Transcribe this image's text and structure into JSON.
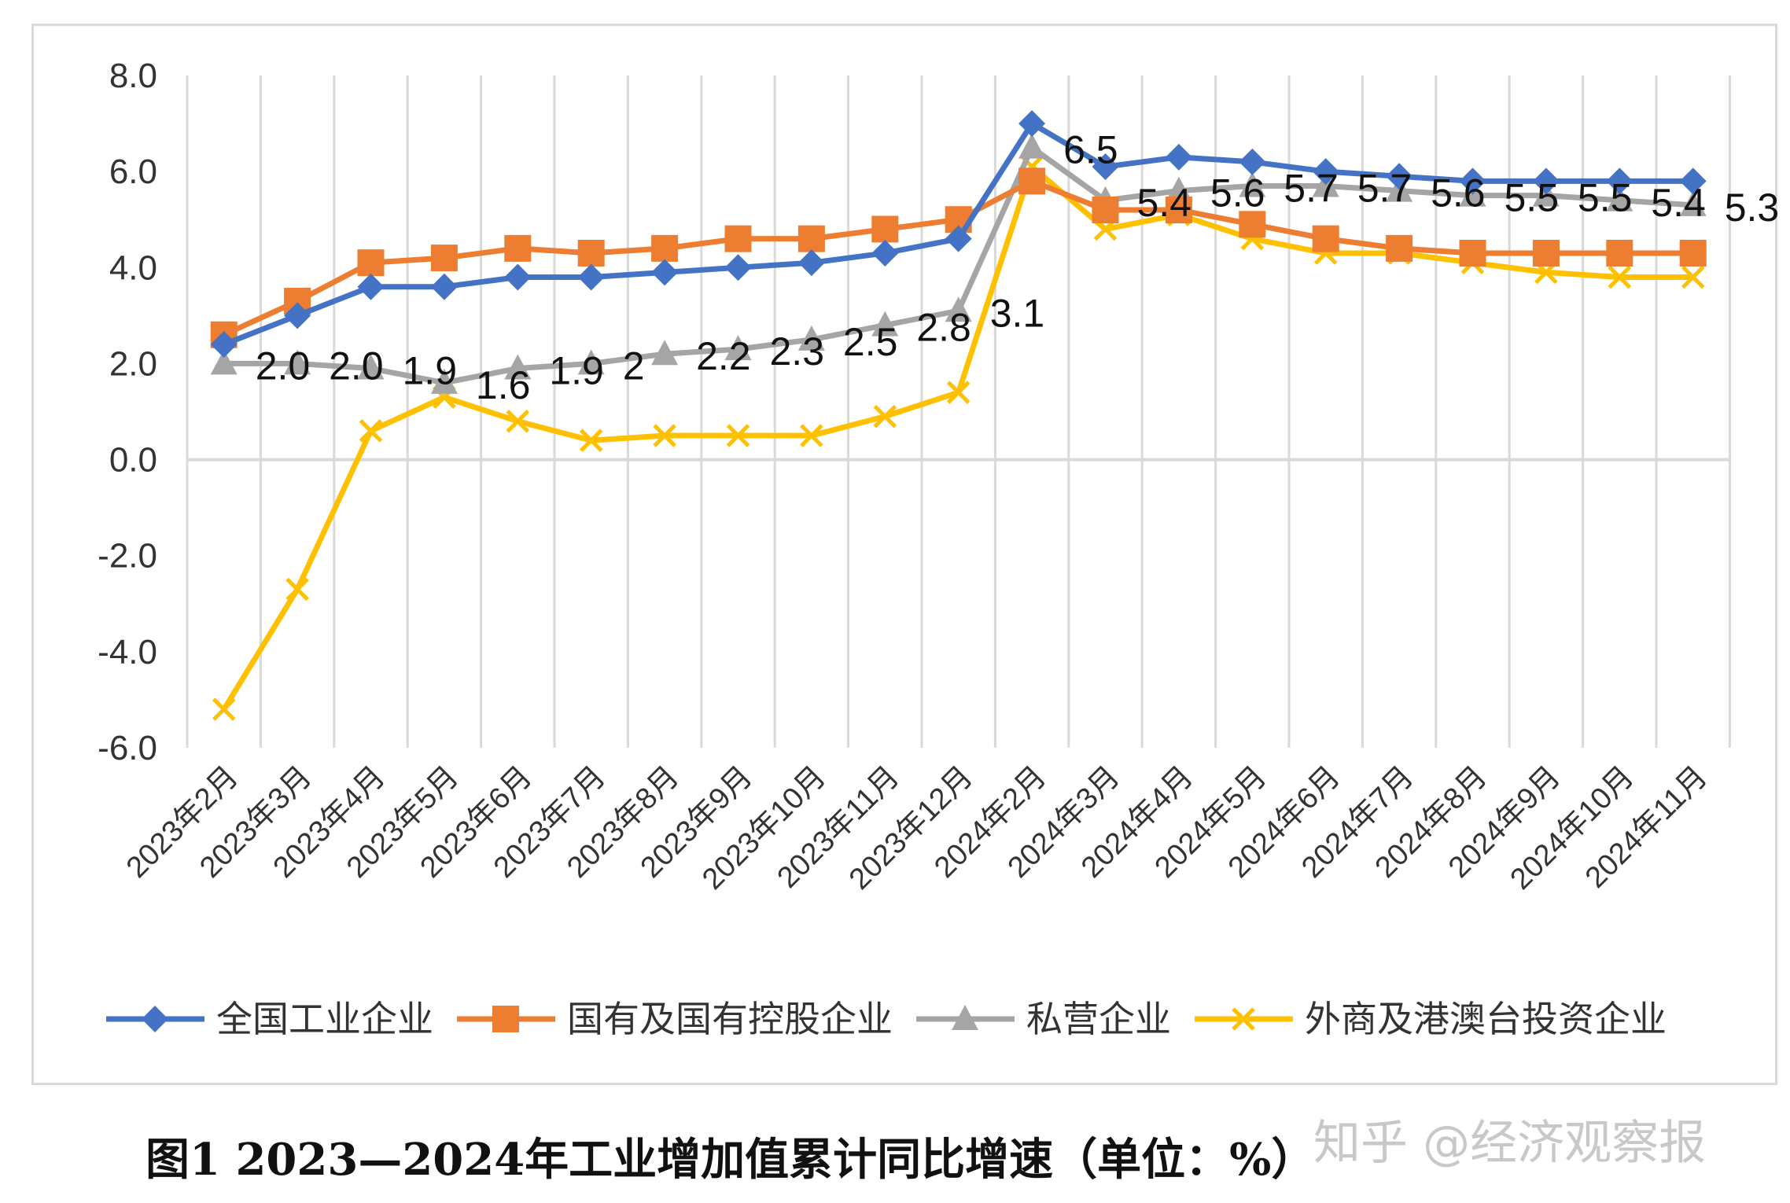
{
  "chart_data": {
    "type": "line",
    "title": "图1 2023—2024年工业增加值累计同比增速（单位：%）",
    "xlabel": "",
    "ylabel": "",
    "ylim": [
      -6.0,
      8.0
    ],
    "yticks": [
      "8.0",
      "6.0",
      "4.0",
      "2.0",
      "0.0",
      "-2.0",
      "-4.0",
      "-6.0"
    ],
    "grid": "vertical",
    "legend_position": "bottom",
    "categories": [
      "2023年2月",
      "2023年3月",
      "2023年4月",
      "2023年5月",
      "2023年6月",
      "2023年7月",
      "2023年8月",
      "2023年9月",
      "2023年10月",
      "2023年11月",
      "2023年12月",
      "2024年2月",
      "2024年3月",
      "2024年4月",
      "2024年5月",
      "2024年6月",
      "2024年7月",
      "2024年8月",
      "2024年9月",
      "2024年10月",
      "2024年11月"
    ],
    "series": [
      {
        "name": "全国工业企业",
        "color": "#4472c4",
        "marker": "diamond",
        "values": [
          2.4,
          3.0,
          3.6,
          3.6,
          3.8,
          3.8,
          3.9,
          4.0,
          4.1,
          4.3,
          4.6,
          7.0,
          6.1,
          6.3,
          6.2,
          6.0,
          5.9,
          5.8,
          5.8,
          5.8,
          5.8
        ]
      },
      {
        "name": "国有及国有控股企业",
        "color": "#ed7d31",
        "marker": "square",
        "values": [
          2.6,
          3.3,
          4.1,
          4.2,
          4.4,
          4.3,
          4.4,
          4.6,
          4.6,
          4.8,
          5.0,
          5.8,
          5.2,
          5.2,
          4.9,
          4.6,
          4.4,
          4.3,
          4.3,
          4.3,
          4.3
        ]
      },
      {
        "name": "私营企业",
        "color": "#a5a5a5",
        "marker": "triangle",
        "values": [
          2.0,
          2.0,
          1.9,
          1.6,
          1.9,
          2.0,
          2.2,
          2.3,
          2.5,
          2.8,
          3.1,
          6.5,
          5.4,
          5.6,
          5.7,
          5.7,
          5.6,
          5.5,
          5.5,
          5.4,
          5.3
        ],
        "data_labels": [
          "2.0",
          "2.0",
          "1.9",
          "1.6",
          "1.9",
          "2",
          "2.2",
          "2.3",
          "2.5",
          "2.8",
          "3.1",
          "6.5",
          "5.4",
          "5.6",
          "5.7",
          "5.7",
          "5.6",
          "5.5",
          "5.5",
          "5.4",
          "5.3"
        ]
      },
      {
        "name": "外商及港澳台投资企业",
        "color": "#ffc000",
        "marker": "x",
        "values": [
          -5.2,
          -2.7,
          0.6,
          1.3,
          0.8,
          0.4,
          0.5,
          0.5,
          0.5,
          0.9,
          1.4,
          6.1,
          4.8,
          5.1,
          4.6,
          4.3,
          4.3,
          4.1,
          3.9,
          3.8,
          3.8
        ]
      }
    ]
  },
  "caption": "图1 2023—2024年工业增加值累计同比增速（单位：%）",
  "watermark": "知乎 @经济观察报"
}
